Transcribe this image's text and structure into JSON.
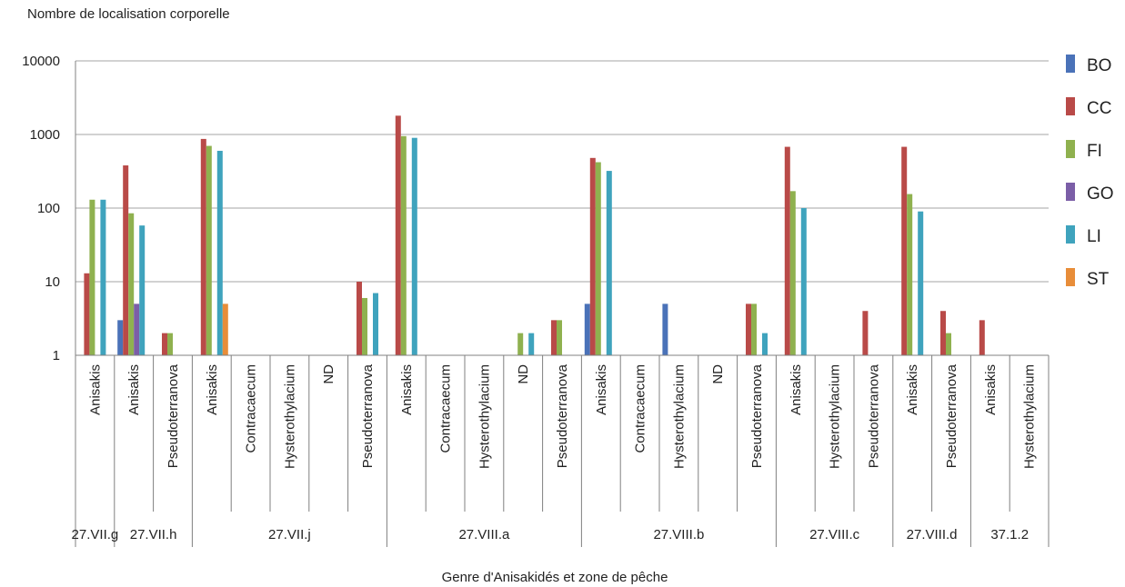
{
  "chart_data": {
    "type": "bar",
    "ylabel": "Nombre de localisation corporelle",
    "xlabel": "Genre d'Anisakidés et zone de pêche",
    "yscale": "log",
    "ylim": [
      1,
      10000
    ],
    "yticks": [
      "1",
      "10",
      "100",
      "1000",
      "10000"
    ],
    "grid": true,
    "legend_position": "right",
    "colors": {
      "BO": "#4a72b8",
      "CC": "#b94a48",
      "FI": "#8fb14f",
      "GO": "#7b5ea7",
      "LI": "#3fa3bd",
      "ST": "#e88d39"
    },
    "series_names": [
      "BO",
      "CC",
      "FI",
      "GO",
      "LI",
      "ST"
    ],
    "categories": [
      {
        "genre": "Anisakis",
        "zone": "27.VII.g",
        "values": {
          "CC": 13,
          "FI": 130,
          "LI": 130
        }
      },
      {
        "genre": "Anisakis",
        "zone": "27.VII.h",
        "values": {
          "BO": 3,
          "CC": 380,
          "FI": 85,
          "GO": 5,
          "LI": 58
        }
      },
      {
        "genre": "Pseudoterranova",
        "zone": "27.VII.h",
        "values": {
          "CC": 2,
          "FI": 2
        }
      },
      {
        "genre": "Anisakis",
        "zone": "27.VII.j",
        "values": {
          "CC": 870,
          "FI": 700,
          "LI": 600,
          "ST": 5
        }
      },
      {
        "genre": "Contracaecum",
        "zone": "27.VII.j",
        "values": {}
      },
      {
        "genre": "Hysterothylacium",
        "zone": "27.VII.j",
        "values": {}
      },
      {
        "genre": "ND",
        "zone": "27.VII.j",
        "values": {}
      },
      {
        "genre": "Pseudoterranova",
        "zone": "27.VII.j",
        "values": {
          "CC": 10,
          "FI": 6,
          "LI": 7
        }
      },
      {
        "genre": "Anisakis",
        "zone": "27.VIII.a",
        "values": {
          "CC": 1800,
          "FI": 950,
          "LI": 900
        }
      },
      {
        "genre": "Contracaecum",
        "zone": "27.VIII.a",
        "values": {}
      },
      {
        "genre": "Hysterothylacium",
        "zone": "27.VIII.a",
        "values": {}
      },
      {
        "genre": "ND",
        "zone": "27.VIII.a",
        "values": {
          "FI": 2,
          "LI": 2
        }
      },
      {
        "genre": "Pseudoterranova",
        "zone": "27.VIII.a",
        "values": {
          "CC": 3,
          "FI": 3
        }
      },
      {
        "genre": "Anisakis",
        "zone": "27.VIII.b",
        "values": {
          "BO": 5,
          "CC": 480,
          "FI": 420,
          "LI": 320
        }
      },
      {
        "genre": "Contracaecum",
        "zone": "27.VIII.b",
        "values": {}
      },
      {
        "genre": "Hysterothylacium",
        "zone": "27.VIII.b",
        "values": {
          "BO": 5
        }
      },
      {
        "genre": "ND",
        "zone": "27.VIII.b",
        "values": {}
      },
      {
        "genre": "Pseudoterranova",
        "zone": "27.VIII.b",
        "values": {
          "CC": 5,
          "FI": 5,
          "LI": 2
        }
      },
      {
        "genre": "Anisakis",
        "zone": "27.VIII.c",
        "values": {
          "CC": 680,
          "FI": 170,
          "LI": 100
        }
      },
      {
        "genre": "Hysterothylacium",
        "zone": "27.VIII.c",
        "values": {}
      },
      {
        "genre": "Pseudoterranova",
        "zone": "27.VIII.c",
        "values": {
          "CC": 4
        }
      },
      {
        "genre": "Anisakis",
        "zone": "27.VIII.d",
        "values": {
          "CC": 680,
          "FI": 155,
          "LI": 90
        }
      },
      {
        "genre": "Pseudoterranova",
        "zone": "27.VIII.d",
        "values": {
          "CC": 4,
          "FI": 2
        }
      },
      {
        "genre": "Anisakis",
        "zone": "37.1.2",
        "values": {
          "CC": 3
        }
      },
      {
        "genre": "Hysterothylacium",
        "zone": "37.1.2",
        "values": {}
      }
    ],
    "zones": [
      "27.VII.g",
      "27.VII.h",
      "27.VII.j",
      "27.VIII.a",
      "27.VIII.b",
      "27.VIII.c",
      "27.VIII.d",
      "37.1.2"
    ]
  }
}
